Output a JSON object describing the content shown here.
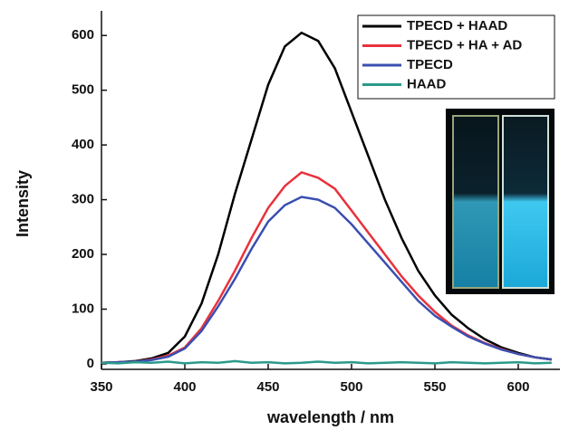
{
  "chart_data": {
    "type": "line",
    "x_label": "wavelength / nm",
    "y_label": "Intensity",
    "x": [
      350,
      360,
      370,
      380,
      390,
      400,
      410,
      420,
      430,
      440,
      450,
      460,
      470,
      480,
      490,
      500,
      510,
      520,
      530,
      540,
      550,
      560,
      570,
      580,
      590,
      600,
      610,
      620
    ],
    "series": [
      {
        "name": "TPECD + HAAD",
        "color": "#000000",
        "values": [
          2,
          3,
          5,
          10,
          20,
          50,
          110,
          200,
          310,
          410,
          510,
          580,
          605,
          590,
          540,
          460,
          380,
          300,
          230,
          170,
          125,
          90,
          65,
          45,
          30,
          20,
          12,
          8
        ]
      },
      {
        "name": "TPECD + HA + AD",
        "color": "#e8323c",
        "values": [
          2,
          3,
          4,
          8,
          15,
          30,
          65,
          115,
          170,
          230,
          285,
          325,
          350,
          340,
          320,
          280,
          240,
          200,
          160,
          125,
          95,
          70,
          52,
          38,
          27,
          18,
          12,
          8
        ]
      },
      {
        "name": "TPECD",
        "color": "#3a4fb0",
        "values": [
          2,
          3,
          4,
          7,
          13,
          28,
          60,
          105,
          155,
          210,
          260,
          290,
          305,
          300,
          285,
          255,
          220,
          185,
          150,
          115,
          88,
          68,
          50,
          37,
          26,
          18,
          12,
          8
        ]
      },
      {
        "name": "HAAD",
        "color": "#2a9a8a",
        "values": [
          2,
          1,
          3,
          2,
          4,
          1,
          3,
          2,
          5,
          2,
          3,
          1,
          2,
          4,
          2,
          3,
          1,
          2,
          3,
          2,
          1,
          3,
          2,
          1,
          2,
          3,
          1,
          2
        ]
      }
    ],
    "xlim": [
      350,
      625
    ],
    "xticks": [
      350,
      400,
      450,
      500,
      550,
      600
    ],
    "ylim": [
      -10,
      645
    ],
    "yticks": [
      0,
      100,
      200,
      300,
      400,
      500,
      600
    ],
    "legend": "upper right"
  }
}
